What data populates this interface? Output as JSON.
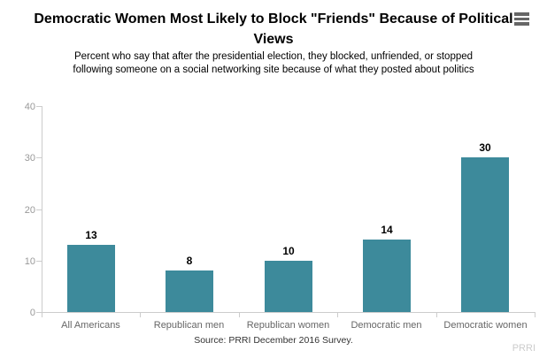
{
  "header": {
    "menu_icon": "hamburger-menu"
  },
  "footer": {
    "source": "Source: PRRI December 2016 Survey.",
    "watermark": "PRRI"
  },
  "colors": {
    "bar": "#3d8a9b",
    "axis": "#cccccc",
    "tick_label": "#999999",
    "category_label": "#666666",
    "value_label": "#000000",
    "title": "#000000",
    "watermark": "#cccccc",
    "menu_icon": "#666666"
  },
  "chart_data": {
    "type": "bar",
    "title": "Democratic Women Most Likely to Block \"Friends\" Because of Political Views",
    "subtitle": "Percent who say that after the presidential election, they blocked, unfriended, or stopped following someone on a social networking site because of what they posted about politics",
    "categories": [
      "All Americans",
      "Republican men",
      "Republican women",
      "Democratic men",
      "Democratic women"
    ],
    "values": [
      13,
      8,
      10,
      14,
      30
    ],
    "xlabel": "",
    "ylabel": "",
    "ylim": [
      0,
      40
    ],
    "yticks": [
      0,
      10,
      20,
      30,
      40
    ],
    "grid": false,
    "legend": "none",
    "data_labels": true
  }
}
